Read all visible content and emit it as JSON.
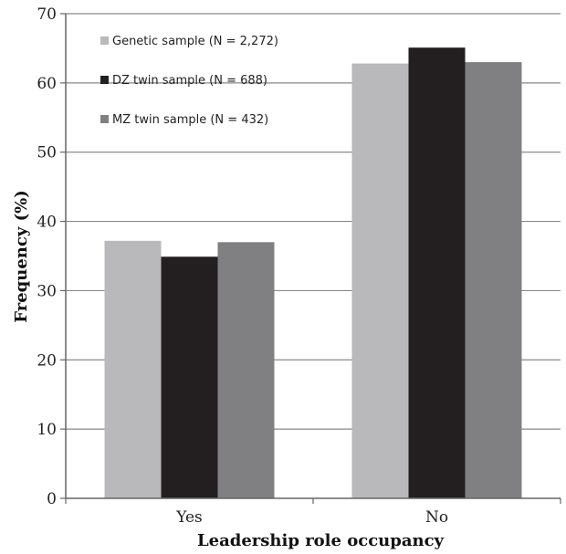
{
  "chart_data": {
    "type": "bar",
    "title": "",
    "xlabel": "Leadership role occupancy",
    "ylabel": "Frequency (%)",
    "categories": [
      "Yes",
      "No"
    ],
    "ylim": [
      0,
      70
    ],
    "yticks": [
      0,
      10,
      20,
      30,
      40,
      50,
      60,
      70
    ],
    "grid": true,
    "legend_position": "top-left",
    "series": [
      {
        "name": "Genetic sample (N = 2,272)",
        "values": [
          37.2,
          62.8
        ],
        "color": "#b9b9bb"
      },
      {
        "name": "DZ twin sample (N = 688)",
        "values": [
          34.9,
          65.1
        ],
        "color": "#231f20"
      },
      {
        "name": "MZ twin sample (N = 432)",
        "values": [
          37.0,
          63.0
        ],
        "color": "#808083"
      }
    ]
  }
}
